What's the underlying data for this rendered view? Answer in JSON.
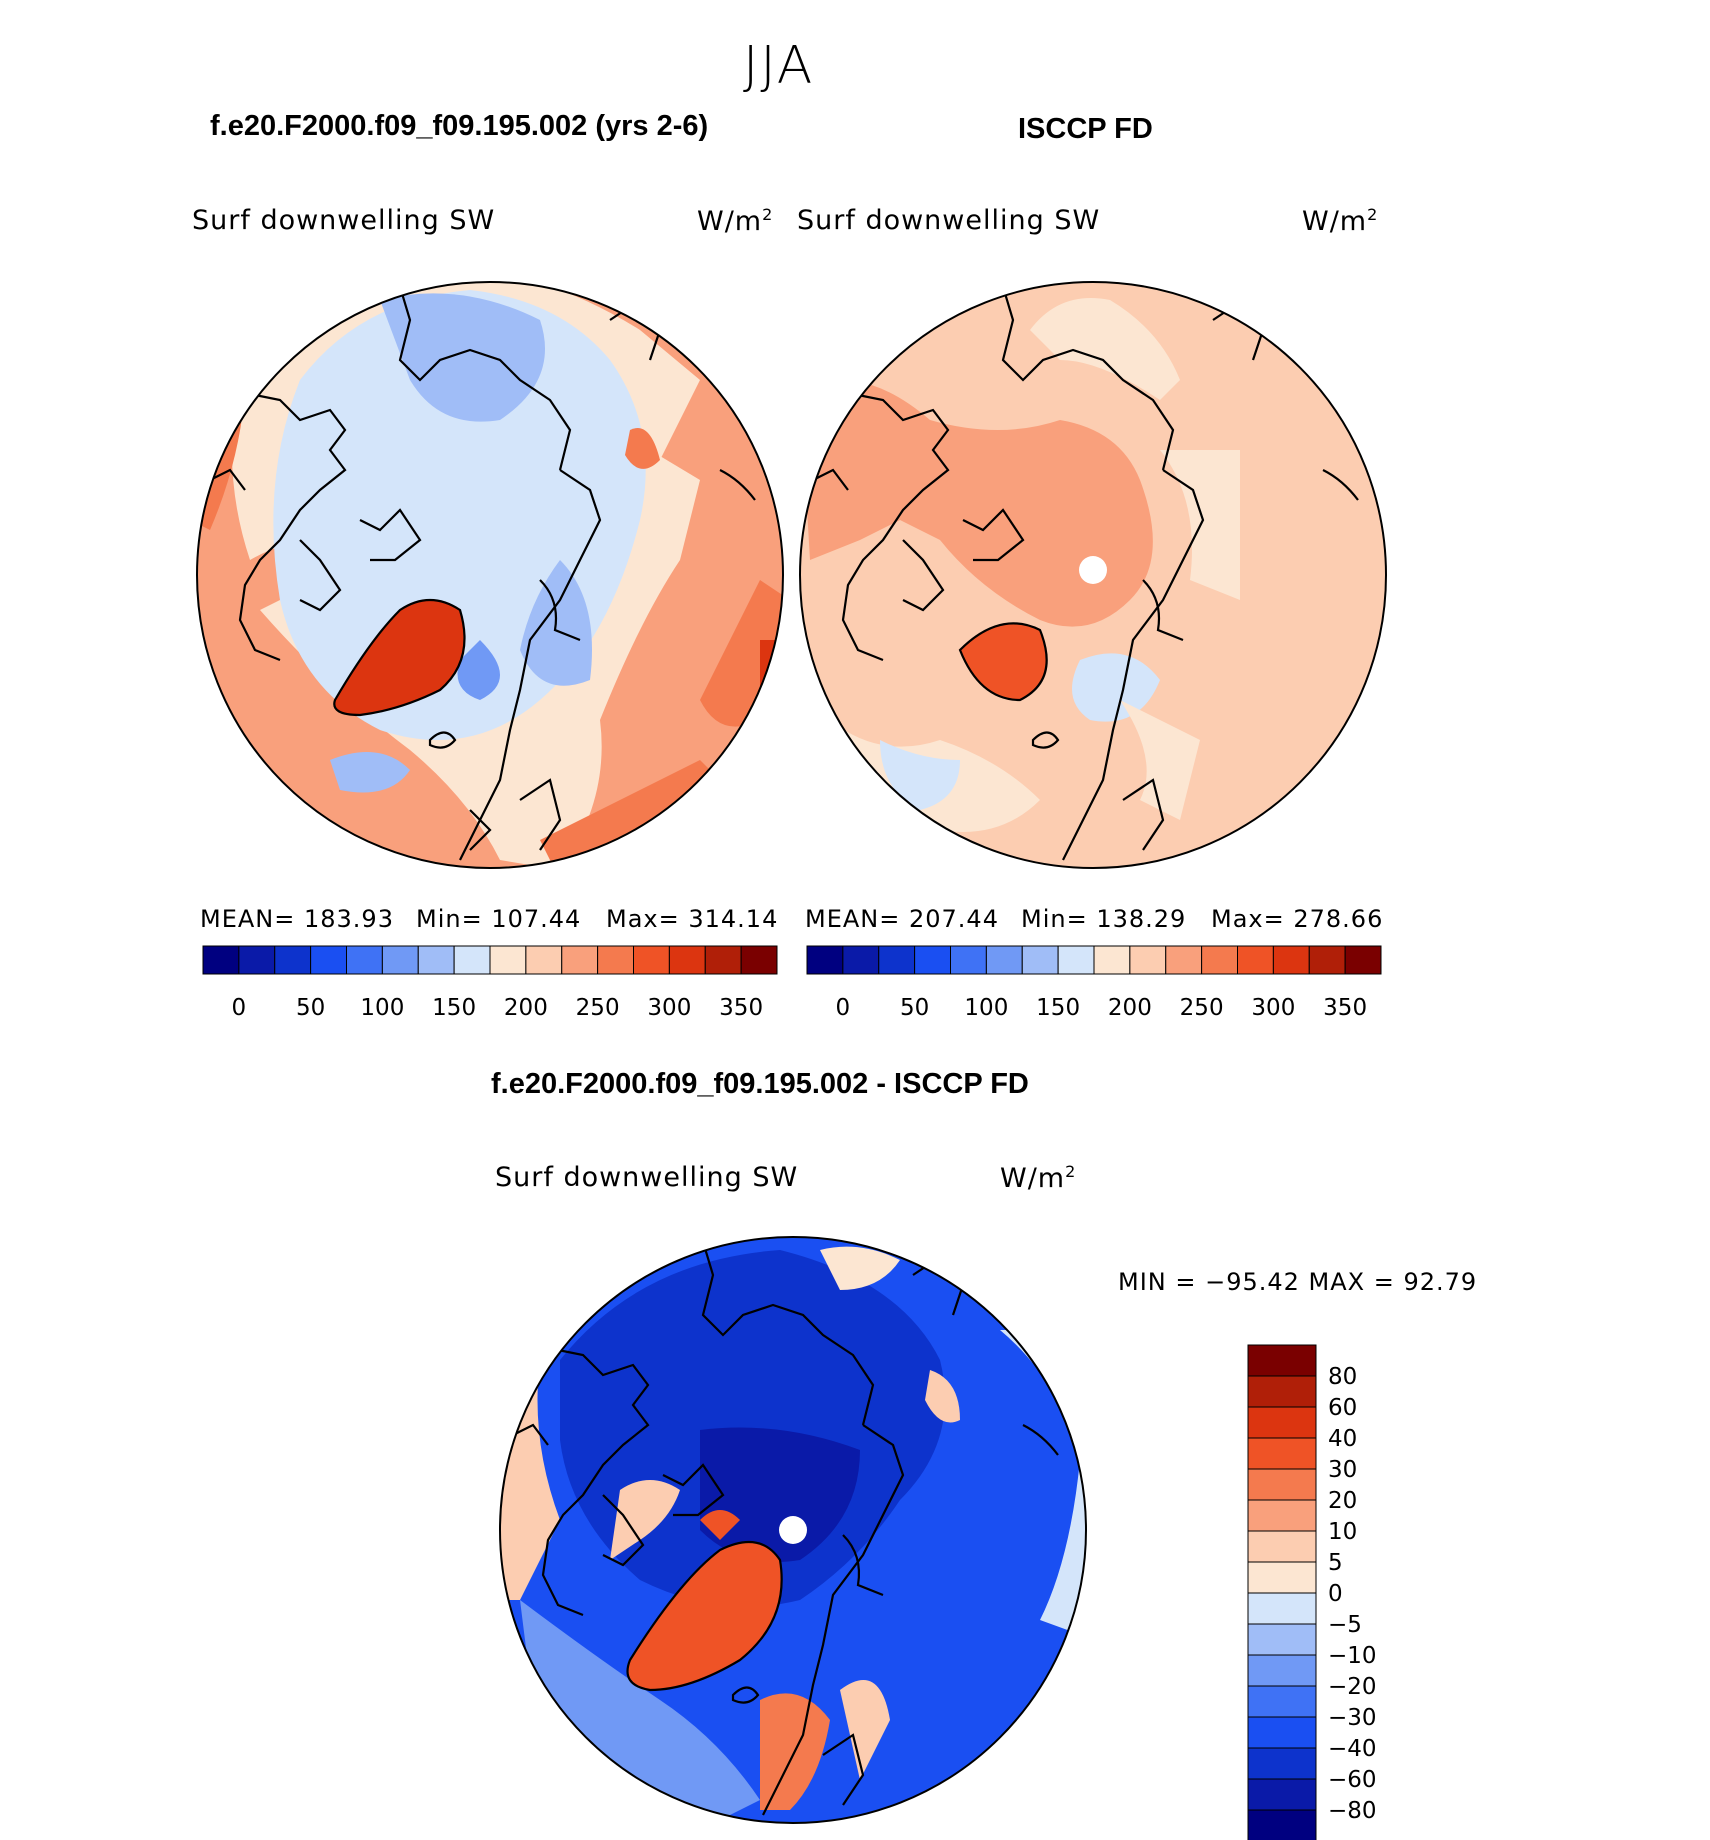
{
  "page": {
    "season": "JJA",
    "model_title": "f.e20.F2000.f09_f09.195.002 (yrs 2-6)",
    "obs_title": "ISCCP FD",
    "diff_title": "f.e20.F2000.f09_f09.195.002 - ISCCP FD"
  },
  "panels": {
    "model": {
      "variable": "Surf downwelling SW",
      "units": "W/m",
      "units_sup": "2",
      "stats": {
        "mean": "MEAN= 183.93",
        "min": "Min= 107.44",
        "max": "Max= 314.14"
      }
    },
    "obs": {
      "variable": "Surf downwelling SW",
      "units": "W/m",
      "units_sup": "2",
      "stats": {
        "mean": "MEAN= 207.44",
        "min": "Min= 138.29",
        "max": "Max= 278.66"
      }
    },
    "diff": {
      "variable": "Surf downwelling SW",
      "units": "W/m",
      "units_sup": "2",
      "stats_text": "MIN = −95.42 MAX =   92.79"
    }
  },
  "colors": {
    "abs_scale": [
      "#000080",
      "#0a1aa8",
      "#0d33cc",
      "#1a4ff2",
      "#3f72f5",
      "#7099f5",
      "#a0bdf7",
      "#d4e5fa",
      "#fce6d2",
      "#fccdb1",
      "#f9a07c",
      "#f47a4e",
      "#ef5326",
      "#dc3510",
      "#b01f08",
      "#7a0000"
    ],
    "diff_scale": [
      "#000080",
      "#0a1aa8",
      "#0d33cc",
      "#1a4ff2",
      "#3f72f5",
      "#7099f5",
      "#a0bdf7",
      "#d4e5fa",
      "#fce6d2",
      "#fccdb1",
      "#f9a07c",
      "#f47a4e",
      "#ef5326",
      "#dc3510",
      "#b01f08",
      "#7a0000"
    ]
  },
  "chart_data": [
    {
      "type": "heatmap",
      "name": "model",
      "projection": "north-polar-stereographic",
      "title": "f.e20.F2000.f09_f09.195.002 (yrs 2-6)",
      "variable": "Surf downwelling SW",
      "units": "W/m2",
      "mean": 183.93,
      "min": 107.44,
      "max": 314.14,
      "colorbar_ticks": [
        "0",
        "50",
        "100",
        "150",
        "200",
        "250",
        "300",
        "350"
      ]
    },
    {
      "type": "heatmap",
      "name": "obs",
      "projection": "north-polar-stereographic",
      "title": "ISCCP FD",
      "variable": "Surf downwelling SW",
      "units": "W/m2",
      "mean": 207.44,
      "min": 138.29,
      "max": 278.66,
      "colorbar_ticks": [
        "0",
        "50",
        "100",
        "150",
        "200",
        "250",
        "300",
        "350"
      ]
    },
    {
      "type": "heatmap",
      "name": "difference",
      "projection": "north-polar-stereographic",
      "title": "f.e20.F2000.f09_f09.195.002 - ISCCP FD",
      "variable": "Surf downwelling SW",
      "units": "W/m2",
      "min": -95.42,
      "max": 92.79,
      "colorbar_ticks": [
        "80",
        "60",
        "40",
        "30",
        "20",
        "10",
        "5",
        "0",
        "−5",
        "−10",
        "−20",
        "−30",
        "−40",
        "−60",
        "−80"
      ]
    }
  ]
}
